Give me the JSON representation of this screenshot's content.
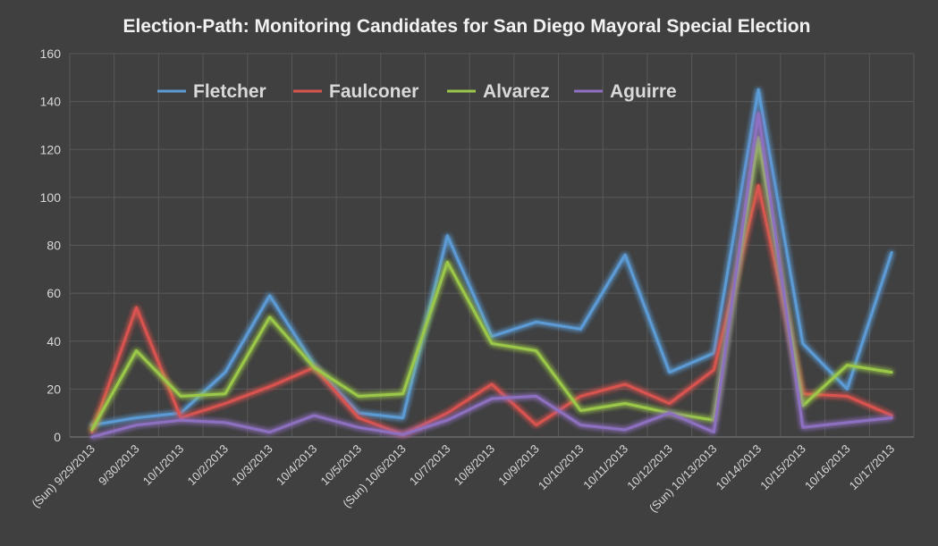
{
  "chart_data": {
    "type": "line",
    "title": "Election-Path: Monitoring  Candidates for San Diego Mayoral Special Election",
    "xlabel": "",
    "ylabel": "",
    "ylim": [
      0,
      160
    ],
    "yticks": [
      0,
      20,
      40,
      60,
      80,
      100,
      120,
      140,
      160
    ],
    "grid": true,
    "legend_position": "top-left",
    "categories": [
      "(Sun) 9/29/2013",
      "9/30/2013",
      "10/1/2013",
      "10/2/2013",
      "10/3/2013",
      "10/4/2013",
      "10/5/2013",
      "(Sun) 10/6/2013",
      "10/7/2013",
      "10/8/2013",
      "10/9/2013",
      "10/10/2013",
      "10/11/2013",
      "10/12/2013",
      "(Sun) 10/13/2013",
      "10/14/2013",
      "10/15/2013",
      "10/16/2013",
      "10/17/2013"
    ],
    "series": [
      {
        "name": "Fletcher",
        "color": "#5b9bd5",
        "values": [
          5,
          8,
          10,
          27,
          59,
          30,
          10,
          8,
          84,
          42,
          48,
          45,
          76,
          27,
          35,
          145,
          39,
          20,
          77
        ]
      },
      {
        "name": "Faulconer",
        "color": "#d9534f",
        "values": [
          2,
          54,
          8,
          14,
          21,
          29,
          8,
          1,
          10,
          22,
          5,
          17,
          22,
          14,
          28,
          105,
          18,
          17,
          9
        ]
      },
      {
        "name": "Alvarez",
        "color": "#9bc84a",
        "values": [
          3,
          36,
          17,
          18,
          50,
          29,
          17,
          18,
          73,
          39,
          36,
          11,
          14,
          10,
          7,
          125,
          13,
          30,
          27
        ]
      },
      {
        "name": "Aguirre",
        "color": "#8e6fc0",
        "values": [
          0,
          5,
          7,
          6,
          2,
          9,
          4,
          1,
          7,
          16,
          17,
          5,
          3,
          10,
          2,
          135,
          4,
          6,
          8
        ]
      }
    ]
  }
}
